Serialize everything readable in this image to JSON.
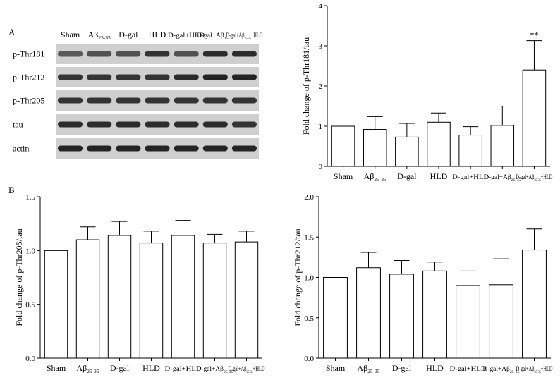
{
  "panel_labels": [
    "A",
    "B"
  ],
  "blot": {
    "lane_labels": [
      {
        "main": "Sham"
      },
      {
        "main": "Aβ",
        "sub": "25-35"
      },
      {
        "main": "D-gal"
      },
      {
        "main": "HLD"
      },
      {
        "main": "D-gal+HLD"
      },
      {
        "main": "D-gal+Aβ",
        "sub": "25-35"
      },
      {
        "main": "D-gal+Aβ",
        "sub": "25-35",
        "tail": "+HLD"
      }
    ],
    "rows": [
      "p-Thr181",
      "p-Thr212",
      "p-Thr205",
      "tau",
      "actin"
    ]
  },
  "categories": [
    {
      "main": "Sham"
    },
    {
      "main": "Aβ",
      "sub": "25-35"
    },
    {
      "main": "D-gal"
    },
    {
      "main": "HLD"
    },
    {
      "main": "D-gal+HLD"
    },
    {
      "main": "D-gal+Aβ",
      "sub": "25-35"
    },
    {
      "main": "D-gal+Aβ",
      "sub": "25-35",
      "tail": "+HLD"
    }
  ],
  "chart_data": [
    {
      "type": "bar",
      "ylabel": "Fold change of p-Thr181/tau",
      "ylim": [
        0,
        4
      ],
      "yticks": [
        "0",
        "1",
        "2",
        "3",
        "4"
      ],
      "values": [
        1.0,
        0.92,
        0.73,
        1.1,
        0.78,
        1.02,
        2.4
      ],
      "errors": [
        0,
        0.32,
        0.34,
        0.23,
        0.21,
        0.48,
        0.73
      ],
      "annotations": [
        {
          "index": 6,
          "text": "**"
        }
      ]
    },
    {
      "type": "bar",
      "ylabel": "Fold change of p-Thr205/tau",
      "ylim": [
        0,
        1.5
      ],
      "yticks": [
        "0.0",
        "0.5",
        "1.0",
        "1.5"
      ],
      "values": [
        1.0,
        1.1,
        1.14,
        1.07,
        1.14,
        1.07,
        1.08
      ],
      "errors": [
        0,
        0.12,
        0.13,
        0.11,
        0.14,
        0.08,
        0.1
      ],
      "annotations": []
    },
    {
      "type": "bar",
      "ylabel": "Fold change of p-Thr212/tau",
      "ylim": [
        0,
        2.0
      ],
      "yticks": [
        "0.0",
        "0.5",
        "1.0",
        "1.5",
        "2.0"
      ],
      "values": [
        1.0,
        1.12,
        1.04,
        1.08,
        0.9,
        0.91,
        1.34
      ],
      "errors": [
        0,
        0.19,
        0.17,
        0.11,
        0.18,
        0.32,
        0.26
      ],
      "annotations": []
    }
  ]
}
